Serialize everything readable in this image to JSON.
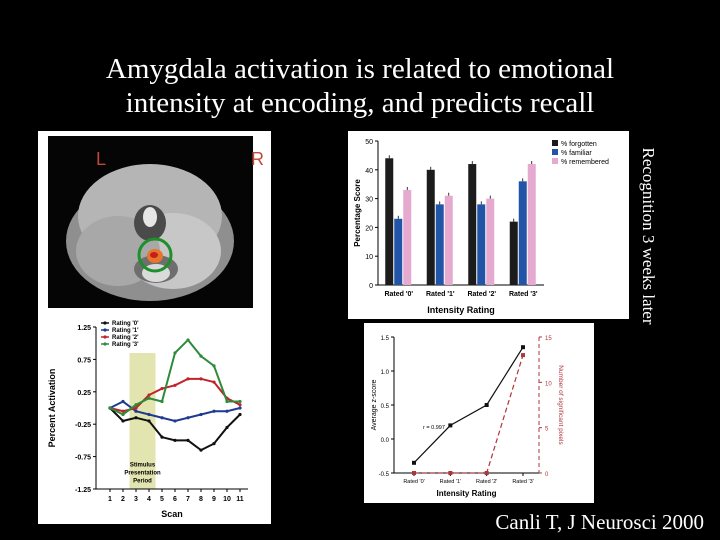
{
  "slide": {
    "title_line1": "Amygdala activation is related to emotional",
    "title_line2": "intensity at encoding, and predicts recall",
    "side_label": "Recognition 3 weeks later",
    "citation": "Canli T, J Neurosci 2000"
  },
  "brain": {
    "left_label": "L",
    "right_label": "R"
  },
  "chart_data": [
    {
      "id": "bar",
      "type": "bar",
      "categories": [
        "Rated '0'",
        "Rated '1'",
        "Rated '2'",
        "Rated '3'"
      ],
      "series": [
        {
          "name": "% forgotten",
          "values": [
            44,
            40,
            42,
            22
          ],
          "color": "#1c1c1c"
        },
        {
          "name": "% familiar",
          "values": [
            23,
            28,
            28,
            36
          ],
          "color": "#2255a8"
        },
        {
          "name": "% remembered",
          "values": [
            33,
            31,
            30,
            42
          ],
          "color": "#e6a9cf"
        }
      ],
      "xlabel": "Intensity Rating",
      "ylabel": "Percentage Score",
      "ylim": [
        0,
        50
      ],
      "yticks": [
        "0",
        "10",
        "20",
        "30",
        "40",
        "50"
      ],
      "legend": "top-right"
    },
    {
      "id": "line",
      "type": "line",
      "x": [
        1,
        2,
        3,
        4,
        5,
        6,
        7,
        8,
        9,
        10,
        11
      ],
      "xtick_labels": [
        "1",
        "2",
        "3",
        "4",
        "5",
        "6",
        "7",
        "8",
        "9",
        "10",
        "11"
      ],
      "series": [
        {
          "name": "Rating '0'",
          "values": [
            0.0,
            -0.2,
            -0.15,
            -0.2,
            -0.45,
            -0.5,
            -0.5,
            -0.65,
            -0.55,
            -0.3,
            -0.1
          ],
          "color": "#111111"
        },
        {
          "name": "Rating '1'",
          "values": [
            0.0,
            0.1,
            -0.05,
            -0.1,
            -0.15,
            -0.2,
            -0.15,
            -0.1,
            -0.05,
            -0.05,
            0.0
          ],
          "color": "#1f3a8f"
        },
        {
          "name": "Rating '2'",
          "values": [
            0.0,
            -0.05,
            0.0,
            0.2,
            0.3,
            0.35,
            0.45,
            0.45,
            0.4,
            0.15,
            0.05
          ],
          "color": "#c0232c"
        },
        {
          "name": "Rating '3'",
          "values": [
            0.0,
            -0.1,
            0.05,
            0.15,
            0.1,
            0.85,
            1.05,
            0.8,
            0.65,
            0.1,
            0.1
          ],
          "color": "#2e8b3a"
        }
      ],
      "xlabel": "Scan",
      "ylabel": "Percent Activation",
      "ylim": [
        -1.25,
        1.25
      ],
      "yticks": [
        "-1.25",
        "-0.75",
        "-0.25",
        "0.25",
        "0.75",
        "1.25"
      ],
      "stimulus_label_lines": [
        "Stimulus",
        "Presentation",
        "Period"
      ],
      "stimulus_range": [
        2.5,
        4.5
      ],
      "legend": "top-left"
    },
    {
      "id": "scatter",
      "type": "line",
      "x": [
        0,
        1,
        2,
        3
      ],
      "xtick_labels": [
        "Rated '0'",
        "Rated '1'",
        "Rated '2'",
        "Rated '3'"
      ],
      "series": [
        {
          "name": "Average z-score",
          "values": [
            -0.35,
            0.2,
            0.5,
            1.35
          ],
          "color": "#111111",
          "axis": "left"
        },
        {
          "name": "Number of significant pixels",
          "values": [
            0,
            0,
            0,
            13
          ],
          "color": "#b0343a",
          "axis": "right"
        }
      ],
      "xlabel": "Intensity Rating",
      "ylabel": "Average z-score",
      "ylim": [
        -0.5,
        1.5
      ],
      "yticks": [
        "-0.5",
        "0.0",
        "0.5",
        "1.0",
        "1.5"
      ],
      "y2label": "Number of significant pixels",
      "y2lim": [
        0,
        15
      ],
      "y2ticks": [
        "0",
        "5",
        "10",
        "15"
      ],
      "annotation": "r = 0.997"
    }
  ]
}
